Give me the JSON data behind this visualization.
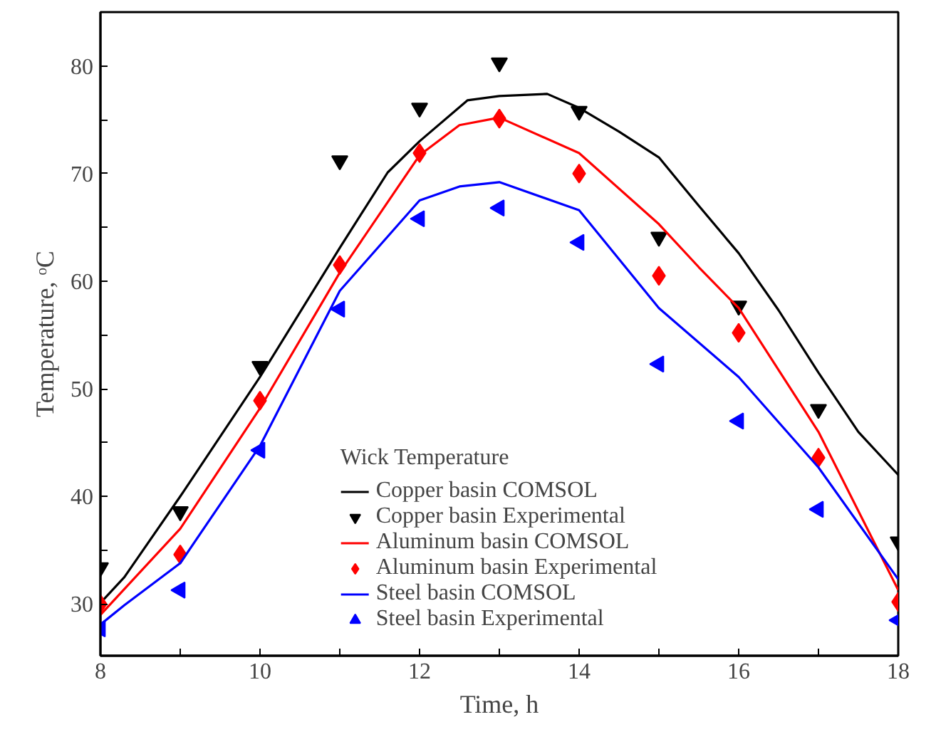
{
  "chart_data": {
    "type": "line",
    "xlabel": "Time, h",
    "ylabel": "Temperature, ᵒC",
    "legend_title": "Wick Temperature",
    "xlim": [
      8,
      18
    ],
    "ylim": [
      25.2,
      85
    ],
    "xticks": [
      8,
      {
        "value": 9,
        "label": null
      },
      10,
      {
        "value": 11,
        "label": null
      },
      12,
      {
        "value": 13,
        "label": null
      },
      14,
      {
        "value": 15,
        "label": null
      },
      16,
      {
        "value": 17,
        "label": null
      },
      18
    ],
    "yticks": [
      30,
      {
        "value": 35,
        "label": null
      },
      40,
      {
        "value": 45,
        "label": null
      },
      50,
      {
        "value": 55,
        "label": null
      },
      60,
      {
        "value": 65,
        "label": null
      },
      70,
      {
        "value": 75,
        "label": null
      },
      80
    ],
    "grid": false,
    "legend": "bottom",
    "series": [
      {
        "name": "Copper basin COMSOL",
        "color": "#000000",
        "x": [
          8,
          8.3,
          9,
          10,
          11,
          11.6,
          12,
          12.6,
          13,
          13.6,
          14,
          14.5,
          15,
          15.5,
          16,
          16.5,
          17,
          17.5,
          18
        ],
        "values": [
          30.1,
          32.5,
          40.0,
          51.1,
          63.1,
          70.1,
          73.0,
          76.8,
          77.2,
          77.4,
          76.1,
          73.9,
          71.5,
          67.0,
          62.6,
          57.3,
          51.5,
          46.0,
          42.0
        ]
      },
      {
        "name": "Copper basin Experimental",
        "type": "scatter",
        "color": "#000000",
        "marker": "triangle_down",
        "x": [
          8,
          9,
          10,
          11,
          12,
          13,
          14,
          15,
          16,
          17,
          18
        ],
        "values": [
          33.4,
          38.6,
          52.1,
          71.2,
          76.1,
          80.3,
          75.8,
          64.1,
          57.7,
          48.1,
          35.8
        ]
      },
      {
        "name": "Aluminum basin COMSOL",
        "color": "#ff0000",
        "x": [
          8,
          9,
          10,
          11,
          12,
          12.5,
          13,
          14,
          15,
          15.5,
          16,
          17,
          18
        ],
        "values": [
          29.0,
          37.0,
          48.2,
          60.8,
          71.7,
          74.5,
          75.2,
          71.9,
          65.3,
          61.3,
          57.5,
          46.0,
          31.3
        ]
      },
      {
        "name": "Aluminum basin Experimental",
        "type": "scatter",
        "color": "#ff0000",
        "marker": "diamond",
        "x": [
          8,
          9,
          10,
          11,
          12,
          13,
          14,
          15,
          16,
          17,
          18
        ],
        "values": [
          30.0,
          34.6,
          48.9,
          61.5,
          71.9,
          75.1,
          70.0,
          60.5,
          55.2,
          43.6,
          30.2
        ]
      },
      {
        "name": "Steel basin COMSOL",
        "color": "#0000ff",
        "x": [
          8,
          8.3,
          9,
          10,
          11,
          12,
          12.5,
          13,
          14,
          15,
          16,
          17,
          18
        ],
        "values": [
          28.1,
          29.9,
          33.8,
          44.7,
          59.1,
          67.5,
          68.8,
          69.2,
          66.6,
          57.5,
          51.1,
          42.7,
          32.3
        ]
      },
      {
        "name": "Steel basin Experimental",
        "type": "scatter",
        "color": "#0000ff",
        "marker": "triangle_left",
        "x": [
          8,
          9,
          10,
          11,
          12,
          13,
          14,
          15,
          16,
          17,
          18
        ],
        "values": [
          27.7,
          31.3,
          44.3,
          57.4,
          65.8,
          66.8,
          63.6,
          52.3,
          47.0,
          38.8,
          28.5
        ]
      }
    ]
  }
}
